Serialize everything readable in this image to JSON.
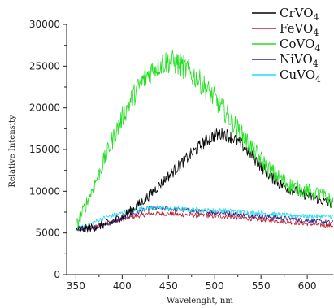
{
  "chart_data": {
    "type": "line",
    "title": "",
    "xlabel": "Wavelenght, nm",
    "ylabel": "Relative Intensity",
    "xlim": [
      340,
      628
    ],
    "ylim": [
      0,
      30000
    ],
    "x_ticks": [
      350,
      400,
      450,
      500,
      550,
      600
    ],
    "y_ticks": [
      0,
      5000,
      10000,
      15000,
      20000,
      25000,
      30000
    ],
    "grid": false,
    "legend_position": "top-right",
    "x": [
      350,
      360,
      370,
      380,
      390,
      400,
      410,
      420,
      430,
      440,
      450,
      460,
      470,
      480,
      490,
      500,
      510,
      520,
      530,
      540,
      550,
      560,
      570,
      580,
      590,
      600,
      610,
      620,
      628
    ],
    "series": [
      {
        "name": "CrVO4",
        "color": "#000000",
        "noise": 900,
        "values": [
          5400,
          5500,
          5700,
          6000,
          6400,
          7000,
          7700,
          8600,
          9600,
          10700,
          11800,
          12900,
          14000,
          15000,
          16000,
          16700,
          16900,
          16400,
          15500,
          14300,
          13000,
          11800,
          10900,
          10300,
          9900,
          9500,
          9100,
          8700,
          8400
        ]
      },
      {
        "name": "FeVO4",
        "color": "#c0202a",
        "noise": 450,
        "values": [
          5400,
          5500,
          5700,
          6000,
          6300,
          6600,
          6900,
          7100,
          7300,
          7300,
          7300,
          7200,
          7200,
          7100,
          7100,
          7000,
          7000,
          6900,
          6800,
          6700,
          6600,
          6500,
          6400,
          6300,
          6200,
          6100,
          6000,
          5900,
          5900
        ]
      },
      {
        "name": "CoVO4",
        "color": "#22dd22",
        "noise": 1300,
        "values": [
          5800,
          8200,
          10800,
          13600,
          16300,
          18800,
          21000,
          22900,
          24300,
          25200,
          25600,
          25300,
          24600,
          23600,
          22400,
          21100,
          19700,
          18200,
          16700,
          15200,
          13800,
          12600,
          11600,
          10800,
          10300,
          10000,
          9800,
          9300,
          8700
        ]
      },
      {
        "name": "NiVO4",
        "color": "#3a1f8a",
        "noise": 500,
        "values": [
          5400,
          5500,
          5700,
          6000,
          6300,
          6700,
          7200,
          7600,
          7900,
          8000,
          7900,
          7800,
          7700,
          7600,
          7500,
          7500,
          7400,
          7300,
          7200,
          7100,
          7000,
          6900,
          6800,
          6700,
          6600,
          6500,
          6400,
          6300,
          6200
        ]
      },
      {
        "name": "CuVO4",
        "color": "#22ddee",
        "noise": 450,
        "values": [
          5500,
          5800,
          6300,
          6800,
          7100,
          7400,
          7700,
          7900,
          8000,
          8000,
          7900,
          7900,
          7800,
          7800,
          7700,
          7700,
          7700,
          7600,
          7500,
          7400,
          7400,
          7300,
          7200,
          7100,
          7100,
          7000,
          7000,
          7000,
          7000
        ]
      }
    ]
  }
}
